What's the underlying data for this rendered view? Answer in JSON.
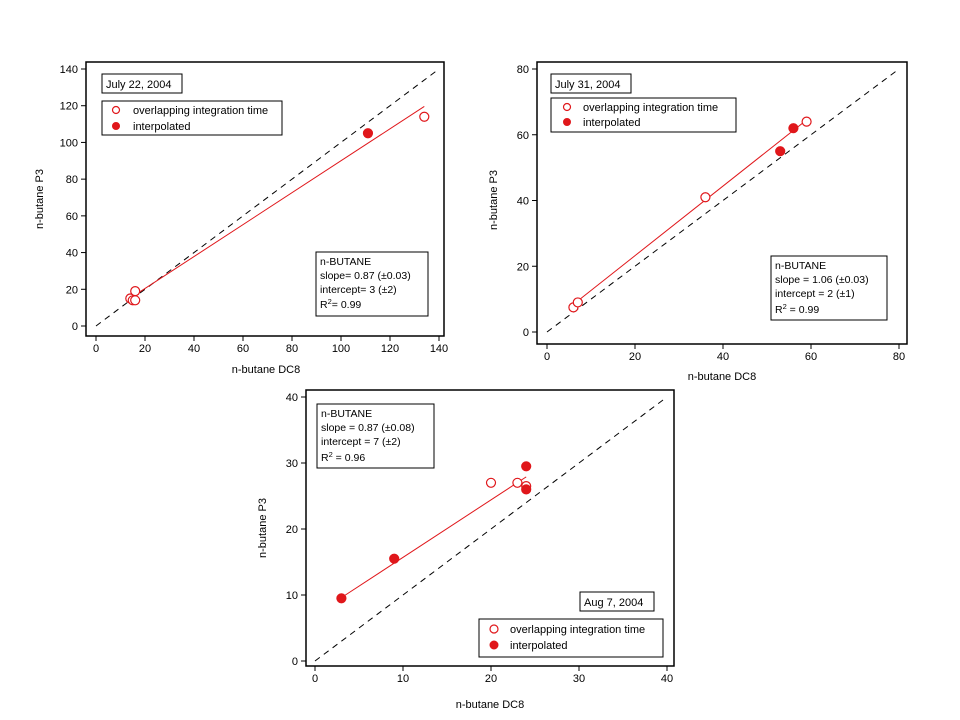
{
  "chart_data": [
    {
      "type": "scatter",
      "date_label": "July 22, 2004",
      "xlabel": "n-butane DC8",
      "ylabel": "n-butane P3",
      "xlim": [
        0,
        140
      ],
      "ylim": [
        0,
        140
      ],
      "xticks": [
        "0",
        "20",
        "40",
        "60",
        "80",
        "100",
        "120",
        "140"
      ],
      "yticks": [
        "0",
        "20",
        "40",
        "60",
        "80",
        "100",
        "120",
        "140"
      ],
      "legend": {
        "open_label": "overlapping integration time",
        "filled_label": "interpolated"
      },
      "stats": {
        "title": "n-BUTANE",
        "slope": "slope= 0.87 (±0.03)",
        "intercept": "intercept= 3 (±2)",
        "r2_prefix": "R",
        "r2_value": "= 0.99"
      },
      "fit": {
        "x": [
          14,
          134
        ],
        "y": [
          15.2,
          119.6
        ]
      },
      "one_to_one": {
        "x": [
          0,
          140
        ],
        "y": [
          0,
          140
        ]
      },
      "series": [
        {
          "kind": "open",
          "points": [
            [
              14,
              15
            ],
            [
              15,
              14
            ],
            [
              16,
              14
            ],
            [
              16,
              19
            ],
            [
              134,
              114
            ]
          ]
        },
        {
          "kind": "filled",
          "points": [
            [
              111,
              105
            ]
          ]
        }
      ]
    },
    {
      "type": "scatter",
      "date_label": "July 31, 2004",
      "xlabel": "n-butane DC8",
      "ylabel": "n-butane P3",
      "xlim": [
        0,
        80
      ],
      "ylim": [
        0,
        80
      ],
      "xticks": [
        "0",
        "20",
        "40",
        "60",
        "80"
      ],
      "yticks": [
        "0",
        "20",
        "40",
        "60",
        "80"
      ],
      "legend": {
        "open_label": "overlapping integration time",
        "filled_label": "interpolated"
      },
      "stats": {
        "title": "n-BUTANE",
        "slope": "slope = 1.06 (±0.03)",
        "intercept": "intercept = 2 (±1)",
        "r2_prefix": "R",
        "r2_value": " = 0.99"
      },
      "fit": {
        "x": [
          6,
          59
        ],
        "y": [
          8.4,
          64.5
        ]
      },
      "one_to_one": {
        "x": [
          0,
          80
        ],
        "y": [
          0,
          80
        ]
      },
      "series": [
        {
          "kind": "open",
          "points": [
            [
              6,
              7.5
            ],
            [
              7,
              9
            ],
            [
              36,
              41
            ],
            [
              59,
              64
            ]
          ]
        },
        {
          "kind": "filled",
          "points": [
            [
              53,
              55
            ],
            [
              56,
              62
            ]
          ]
        }
      ]
    },
    {
      "type": "scatter",
      "date_label": "Aug 7, 2004",
      "xlabel": "n-butane DC8",
      "ylabel": "n-butane P3",
      "xlim": [
        0,
        40
      ],
      "ylim": [
        0,
        40
      ],
      "xticks": [
        "0",
        "10",
        "20",
        "30",
        "40"
      ],
      "yticks": [
        "0",
        "10",
        "20",
        "30",
        "40"
      ],
      "legend": {
        "open_label": "overlapping integration time",
        "filled_label": "interpolated"
      },
      "stats": {
        "title": "n-BUTANE",
        "slope": "slope = 0.87 (±0.08)",
        "intercept": "intercept = 7 (±2)",
        "r2_prefix": "R",
        "r2_value": " = 0.96"
      },
      "fit": {
        "x": [
          3,
          24
        ],
        "y": [
          9.6,
          27.9
        ]
      },
      "one_to_one": {
        "x": [
          0,
          40
        ],
        "y": [
          0,
          40
        ]
      },
      "series": [
        {
          "kind": "open",
          "points": [
            [
              20,
              27
            ],
            [
              23,
              27
            ],
            [
              24,
              26.5
            ]
          ]
        },
        {
          "kind": "filled",
          "points": [
            [
              3,
              9.5
            ],
            [
              9,
              15.5
            ],
            [
              24,
              29.5
            ],
            [
              24,
              26
            ]
          ]
        }
      ]
    }
  ]
}
